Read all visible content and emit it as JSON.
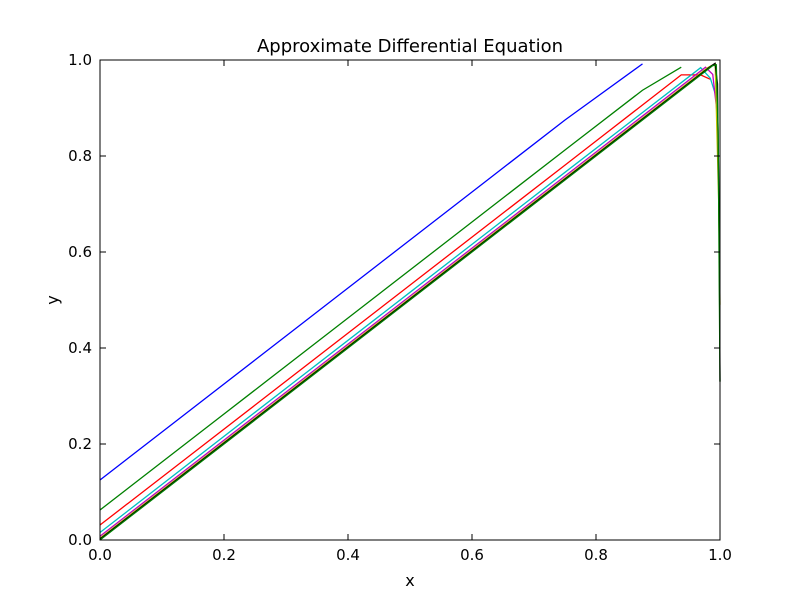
{
  "chart_data": {
    "type": "line",
    "title": "Approximate Differential Equation",
    "xlabel": "x",
    "ylabel": "y",
    "xlim": [
      0,
      1
    ],
    "ylim": [
      0,
      1
    ],
    "xticks": [
      "0.0",
      "0.2",
      "0.4",
      "0.6",
      "0.8",
      "1.0"
    ],
    "yticks": [
      "0.0",
      "0.2",
      "0.4",
      "0.6",
      "0.8",
      "1.0"
    ],
    "grid": false,
    "legend": false,
    "series": [
      {
        "color": "#0000ff",
        "x": [
          0,
          0.125,
          0.25,
          0.375,
          0.5,
          0.625,
          0.75,
          0.875
        ],
        "y": [
          0.125,
          0.25,
          0.375,
          0.5,
          0.625,
          0.75,
          0.875,
          0.992
        ]
      },
      {
        "color": "#008000",
        "x": [
          0,
          0.1875,
          0.375,
          0.5625,
          0.75,
          0.875,
          0.9375
        ],
        "y": [
          0.0625,
          0.25,
          0.4375,
          0.625,
          0.8125,
          0.937,
          0.985
        ]
      },
      {
        "color": "#ff0000",
        "x": [
          0,
          0.125,
          0.25,
          0.5,
          0.75,
          0.9375,
          0.96875,
          0.984
        ],
        "y": [
          0.03125,
          0.156,
          0.281,
          0.531,
          0.781,
          0.969,
          0.969,
          0.96
        ]
      },
      {
        "color": "#00bfbf",
        "x": [
          0,
          0.25,
          0.5,
          0.75,
          0.9688,
          0.9844,
          0.9922
        ],
        "y": [
          0.0156,
          0.266,
          0.516,
          0.766,
          0.984,
          0.962,
          0.93
        ]
      },
      {
        "color": "#bf00bf",
        "x": [
          0,
          0.25,
          0.5,
          0.75,
          0.9766,
          0.9883,
          0.9961
        ],
        "y": [
          0.0078,
          0.258,
          0.508,
          0.758,
          0.985,
          0.97,
          0.88
        ]
      },
      {
        "color": "#bfbf00",
        "x": [
          0,
          0.25,
          0.5,
          0.75,
          0.98,
          0.9922,
          0.998,
          1.0
        ],
        "y": [
          0.0039,
          0.254,
          0.504,
          0.754,
          0.984,
          0.992,
          0.7,
          0.49
        ]
      },
      {
        "color": "#000000",
        "x": [
          0,
          0.25,
          0.5,
          0.75,
          0.985,
          0.992,
          0.996,
          0.999,
          1.0
        ],
        "y": [
          0.002,
          0.252,
          0.502,
          0.752,
          0.987,
          0.993,
          0.95,
          0.6,
          0.33
        ]
      },
      {
        "color": "#008000",
        "x": [
          0,
          0.25,
          0.5,
          0.75,
          0.988,
          0.994,
          0.997,
          0.999,
          1.0
        ],
        "y": [
          0.0,
          0.25,
          0.5,
          0.75,
          0.988,
          0.99,
          0.85,
          0.5,
          0.33
        ]
      }
    ]
  }
}
